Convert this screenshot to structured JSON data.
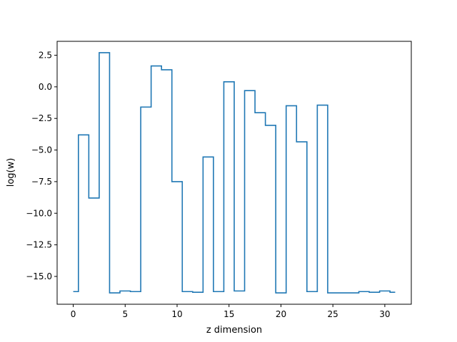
{
  "chart_data": {
    "type": "line",
    "drawstyle": "steps-mid",
    "xlabel": "z dimension",
    "ylabel": "log(w)",
    "xlim": [
      -1.55,
      32.55
    ],
    "ylim": [
      -17.2,
      3.6
    ],
    "xticks": [
      0,
      5,
      10,
      15,
      20,
      25,
      30
    ],
    "xtick_labels": [
      "0",
      "5",
      "10",
      "15",
      "20",
      "25",
      "30"
    ],
    "yticks": [
      2.5,
      0.0,
      -2.5,
      -5.0,
      -7.5,
      -10.0,
      -12.5,
      -15.0
    ],
    "ytick_labels": [
      "2.5",
      "0.0",
      "−2.5",
      "−5.0",
      "−7.5",
      "−10.0",
      "−12.5",
      "−15.0"
    ],
    "grid": false,
    "series_color": "#1f77b4",
    "series": [
      {
        "x": [
          0,
          1,
          2,
          3,
          4,
          5,
          6,
          7,
          8,
          9,
          10,
          11,
          12,
          13,
          14,
          15,
          16,
          17,
          18,
          19,
          20,
          21,
          22,
          23,
          24,
          25,
          26,
          27,
          28,
          29,
          30,
          31
        ],
        "values": [
          -16.2,
          -3.8,
          -8.8,
          2.7,
          -16.3,
          -16.15,
          -16.2,
          -1.6,
          1.65,
          1.35,
          -7.5,
          -16.2,
          -16.25,
          -5.55,
          -16.2,
          0.4,
          -16.15,
          -0.3,
          -2.05,
          -3.05,
          -16.3,
          -1.5,
          -4.35,
          -16.2,
          -1.45,
          -16.3,
          -16.3,
          -16.3,
          -16.2,
          -16.25,
          -16.15,
          -16.25
        ]
      }
    ]
  }
}
